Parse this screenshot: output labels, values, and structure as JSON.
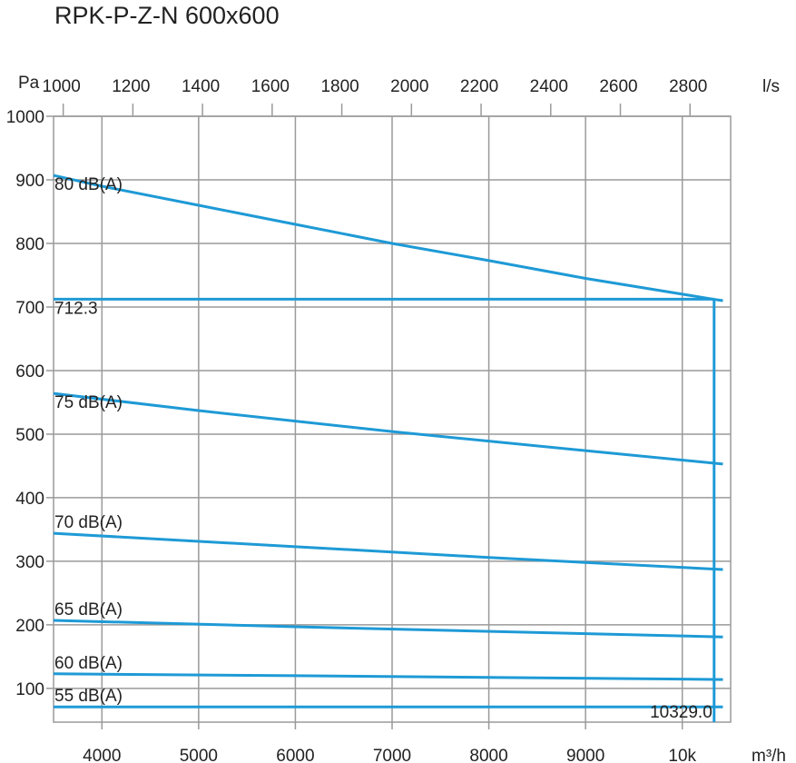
{
  "chart_data": {
    "type": "line",
    "title": "RPK-P-Z-N 600x600",
    "xlabel": "m³/h",
    "x2label": "l/s",
    "ylabel": "Pa",
    "xlim": [
      3500,
      10500
    ],
    "ylim": [
      47,
      1000
    ],
    "x_ticks": [
      4000,
      5000,
      6000,
      7000,
      8000,
      9000,
      10000
    ],
    "x_tick_labels": [
      "4000",
      "5000",
      "6000",
      "7000",
      "8000",
      "9000",
      "10k"
    ],
    "x2_ticks": [
      1000,
      1200,
      1400,
      1600,
      1800,
      2000,
      2200,
      2400,
      2600,
      2800
    ],
    "x2_tick_labels": [
      "1000",
      "1200",
      "1400",
      "1600",
      "1800",
      "2000",
      "2200",
      "2400",
      "2600",
      "2800"
    ],
    "y_ticks": [
      100,
      200,
      300,
      400,
      500,
      600,
      700,
      800,
      900,
      1000
    ],
    "y_tick_labels": [
      "100",
      "200",
      "300",
      "400",
      "500",
      "600",
      "700",
      "800",
      "900",
      "1000"
    ],
    "grid": true,
    "color": "#1e9ad6",
    "series": [
      {
        "name": "80 dB(A)",
        "x": [
          3500,
          4000,
          5000,
          6000,
          7000,
          8000,
          9000,
          10329,
          10420
        ],
        "y": [
          907,
          890,
          860,
          830,
          800,
          773,
          745,
          712,
          710
        ]
      },
      {
        "name": "75 dB(A)",
        "x": [
          3500,
          5000,
          7000,
          9000,
          10420
        ],
        "y": [
          564,
          537,
          504,
          474,
          453
        ]
      },
      {
        "name": "70 dB(A)",
        "x": [
          3500,
          6000,
          8000,
          10420
        ],
        "y": [
          344,
          323,
          306,
          287
        ]
      },
      {
        "name": "65 dB(A)",
        "x": [
          3500,
          6000,
          10420
        ],
        "y": [
          207,
          197,
          181
        ]
      },
      {
        "name": "60 dB(A)",
        "x": [
          3500,
          6000,
          10420
        ],
        "y": [
          123,
          120,
          114
        ]
      },
      {
        "name": "55 dB(A)",
        "x": [
          3500,
          10420
        ],
        "y": [
          71,
          71
        ]
      }
    ],
    "operating_point": {
      "x": 10329.0,
      "y": 712.3,
      "x_label": "10329.0",
      "y_label": "712.3"
    }
  }
}
